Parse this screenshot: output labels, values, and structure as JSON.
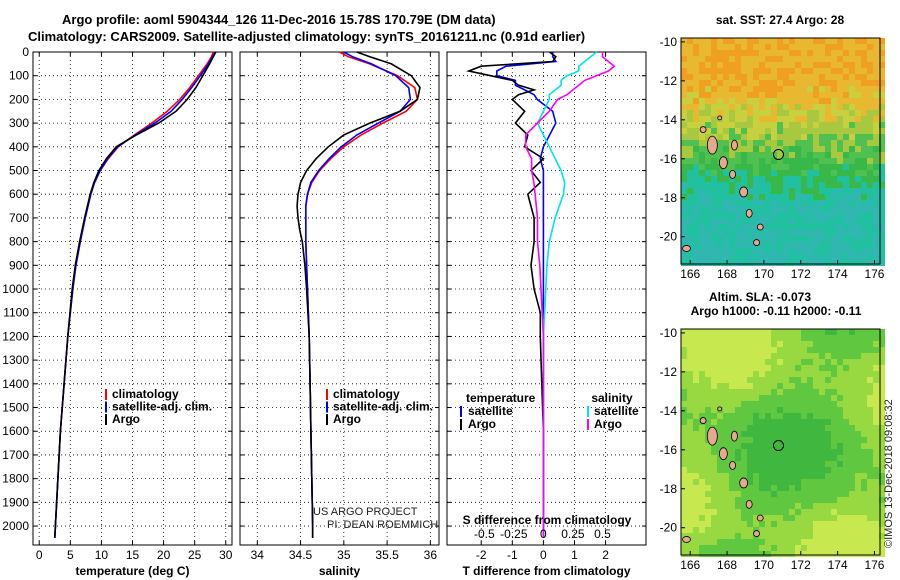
{
  "header": {
    "line1": "Argo profile: aoml 5904344_126 11-Dec-2016 15.78S 170.79E (DM data)",
    "line2": "Climatology: CARS2009. Satellite-adjusted climatology: synTS_20161211.nc (0.91d earlier)"
  },
  "colors": {
    "climatology": "#ff0000",
    "satellite": "#0000ff",
    "argo": "#000000",
    "sat_salinity": "#00e5e5",
    "argo_salinity": "#ff00ff"
  },
  "credits": {
    "line1": "US ARGO PROJECT",
    "line2": "PI: DEAN ROEMMICH"
  },
  "watermark": "©IMOS 13-Dec-2018 09:08:32",
  "chart_data": [
    {
      "type": "line",
      "id": "temperature",
      "xlabel": "temperature (deg C)",
      "ylabel": "",
      "xlim": [
        -1,
        31
      ],
      "ylim": [
        2080,
        0
      ],
      "xticks": [
        0,
        5,
        10,
        15,
        20,
        25,
        30
      ],
      "yticks": [
        0,
        100,
        200,
        300,
        400,
        500,
        600,
        700,
        800,
        900,
        1000,
        1100,
        1200,
        1300,
        1400,
        1500,
        1600,
        1700,
        1800,
        1900,
        2000
      ],
      "legend": [
        "climatology",
        "satellite-adj. clim.",
        "Argo"
      ],
      "depth": [
        0,
        20,
        50,
        100,
        150,
        200,
        250,
        300,
        350,
        400,
        450,
        500,
        550,
        600,
        700,
        800,
        900,
        1000,
        1200,
        1400,
        1600,
        1800,
        2000,
        2050
      ],
      "series": [
        {
          "name": "climatology",
          "values": [
            28.0,
            27.7,
            27.0,
            25.6,
            24.2,
            22.6,
            20.6,
            18.1,
            15.3,
            12.7,
            11.1,
            9.8,
            8.9,
            8.3,
            7.4,
            6.6,
            5.9,
            5.4,
            4.6,
            4.0,
            3.4,
            3.0,
            2.6,
            2.5
          ]
        },
        {
          "name": "satellite-adj. clim.",
          "values": [
            28.3,
            27.9,
            27.2,
            25.9,
            24.5,
            23.0,
            21.2,
            18.6,
            15.4,
            12.6,
            11.0,
            9.8,
            8.9,
            8.3,
            7.4,
            6.6,
            5.9,
            5.4,
            4.6,
            4.0,
            3.4,
            3.0,
            2.6,
            2.5
          ]
        },
        {
          "name": "Argo",
          "values": [
            28.4,
            28.0,
            27.4,
            26.3,
            25.2,
            23.8,
            22.0,
            19.2,
            15.6,
            12.4,
            10.8,
            9.6,
            8.8,
            8.2,
            7.3,
            6.5,
            5.8,
            5.3,
            4.6,
            4.0,
            3.4,
            3.0,
            2.6,
            2.5
          ]
        }
      ]
    },
    {
      "type": "line",
      "id": "salinity",
      "xlabel": "salinity",
      "ylabel": "",
      "xlim": [
        33.8,
        36.1
      ],
      "ylim": [
        2080,
        0
      ],
      "xticks": [
        34,
        34.5,
        35,
        35.5,
        36
      ],
      "legend": [
        "climatology",
        "satellite-adj. clim.",
        "Argo"
      ],
      "depth": [
        0,
        20,
        50,
        100,
        150,
        200,
        250,
        300,
        350,
        400,
        450,
        500,
        550,
        600,
        650,
        700,
        750,
        800,
        900,
        1000,
        1200,
        1400,
        1600,
        1800,
        2000,
        2050
      ],
      "series": [
        {
          "name": "climatology",
          "values": [
            34.95,
            35.05,
            35.3,
            35.62,
            35.82,
            35.85,
            35.72,
            35.45,
            35.2,
            35.0,
            34.85,
            34.72,
            34.63,
            34.58,
            34.56,
            34.56,
            34.56,
            34.56,
            34.57,
            34.58,
            34.6,
            34.61,
            34.62,
            34.63,
            34.64,
            34.64
          ]
        },
        {
          "name": "satellite-adj. clim.",
          "values": [
            35.0,
            35.1,
            35.32,
            35.6,
            35.75,
            35.77,
            35.65,
            35.4,
            35.15,
            34.97,
            34.83,
            34.71,
            34.62,
            34.58,
            34.56,
            34.56,
            34.56,
            34.56,
            34.57,
            34.58,
            34.6,
            34.61,
            34.62,
            34.63,
            34.64,
            34.64
          ]
        },
        {
          "name": "Argo",
          "values": [
            35.15,
            35.3,
            35.55,
            35.78,
            35.88,
            35.85,
            35.65,
            35.3,
            35.0,
            34.82,
            34.68,
            34.57,
            34.5,
            34.47,
            34.46,
            34.47,
            34.49,
            34.52,
            34.55,
            34.57,
            34.6,
            34.61,
            34.62,
            34.63,
            34.64,
            34.64
          ]
        }
      ]
    },
    {
      "type": "line",
      "id": "differences",
      "xlabel": "T difference from climatology",
      "x2label": "S difference from climatology",
      "xlim": [
        -3.1,
        3.3
      ],
      "ylim": [
        2080,
        0
      ],
      "xticks": [
        -2,
        -1,
        0,
        1,
        2
      ],
      "x2ticks": [
        -0.5,
        -0.25,
        0,
        0.25,
        0.5
      ],
      "legend_left_title": "temperature",
      "legend_right_title": "salinity",
      "legend_left": [
        "satellite",
        "Argo"
      ],
      "legend_right": [
        "satellite",
        "Argo"
      ],
      "depth": [
        0,
        20,
        40,
        60,
        80,
        100,
        120,
        140,
        160,
        180,
        200,
        250,
        300,
        350,
        400,
        450,
        500,
        550,
        600,
        700,
        800,
        900,
        1000,
        1100,
        1200,
        1400,
        1600,
        1800,
        2000,
        2050
      ],
      "series": [
        {
          "name": "T satellite",
          "values": [
            0.3,
            0.3,
            0.4,
            -1.2,
            -1.5,
            -1.5,
            -0.9,
            -0.9,
            -0.6,
            -0.3,
            -0.2,
            0.3,
            0.4,
            0.2,
            0.0,
            -0.1,
            0.0,
            0.0,
            0.0,
            0.0,
            0.0,
            0.0,
            0.0,
            0.0,
            0.0,
            0.0,
            0.0,
            0.0,
            0.0,
            0.0
          ]
        },
        {
          "name": "T Argo",
          "values": [
            0.2,
            0.4,
            0.3,
            -2.0,
            -2.4,
            -1.7,
            -1.0,
            -0.8,
            -0.3,
            -0.8,
            -1.0,
            -0.6,
            -0.9,
            -0.5,
            -0.6,
            0.0,
            -0.4,
            -0.1,
            -0.5,
            -0.3,
            -0.3,
            -0.4,
            -0.3,
            -0.1,
            -0.1,
            -0.05,
            0.0,
            0.0,
            0.0,
            0.0
          ]
        },
        {
          "name": "S satellite",
          "values": [
            0.45,
            0.4,
            0.35,
            0.3,
            0.3,
            0.2,
            0.15,
            0.15,
            0.1,
            0.05,
            0.05,
            0.0,
            -0.05,
            0.0,
            0.05,
            0.1,
            0.15,
            0.18,
            0.17,
            0.1,
            0.05,
            0.03,
            0.02,
            0.01,
            0.0,
            0.0,
            0.0,
            0.0,
            0.0,
            0.0
          ]
        },
        {
          "name": "S Argo",
          "values": [
            0.5,
            0.5,
            0.55,
            0.6,
            0.55,
            0.45,
            0.35,
            0.3,
            0.25,
            0.2,
            0.12,
            0.05,
            -0.05,
            -0.15,
            -0.15,
            -0.1,
            -0.1,
            -0.08,
            -0.07,
            -0.05,
            -0.05,
            -0.03,
            -0.02,
            -0.01,
            0.0,
            0.0,
            0.0,
            0.0,
            0.0,
            0.0
          ]
        }
      ]
    },
    {
      "type": "heatmap",
      "id": "sst_map",
      "title": "sat. SST: 27.4 Argo: 28",
      "xticks": [
        166,
        168,
        170,
        172,
        174,
        176
      ],
      "yticks": [
        -10,
        -12,
        -14,
        -16,
        -18,
        -20
      ],
      "xlim": [
        165.5,
        176.3
      ],
      "ylim": [
        -21.4,
        -9.8
      ],
      "float_position": [
        170.79,
        -15.78
      ]
    },
    {
      "type": "heatmap",
      "id": "sla_map",
      "title": "Altim. SLA: -0.073",
      "subtitle": "Argo h1000: -0.11 h2000: -0.11",
      "xticks": [
        166,
        168,
        170,
        172,
        174,
        176
      ],
      "yticks": [
        -10,
        -12,
        -14,
        -16,
        -18,
        -20
      ],
      "xlim": [
        165.5,
        176.3
      ],
      "ylim": [
        -21.4,
        -9.8
      ],
      "float_position": [
        170.79,
        -15.78
      ]
    }
  ]
}
